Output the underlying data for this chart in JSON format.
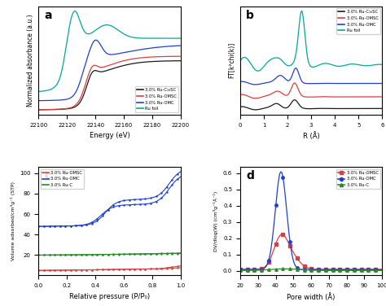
{
  "panel_a": {
    "title": "a",
    "xlabel": "Energy (eV)",
    "ylabel": "Normalized absorbance (a.u.)",
    "xlim": [
      22100,
      22200
    ],
    "xticks": [
      22100,
      22120,
      22140,
      22160,
      22180,
      22200
    ],
    "legend": [
      "3.0% Ru-C₁₆SC",
      "3.0% Ru-OMSC",
      "3.0% Ru-OMC",
      "Ru foil"
    ],
    "colors": [
      "#1a1a1a",
      "#d94040",
      "#2040cc",
      "#00a898"
    ]
  },
  "panel_b": {
    "title": "b",
    "xlabel": "R (Å)",
    "ylabel": "FT[k²chi(k)]",
    "xlim": [
      0,
      6
    ],
    "legend": [
      "3.0% Ru-C₁₆SC",
      "3.0% Ru-OMSC",
      "3.0% Ru-OMC",
      "Ru foil"
    ],
    "colors": [
      "#1a1a1a",
      "#d94040",
      "#2040cc",
      "#00a898"
    ]
  },
  "panel_c": {
    "title": "c",
    "xlabel": "Relative pressure (P/P₀)",
    "ylabel": "Volume adsorbed/cm³g⁻¹ (STP)",
    "xlim": [
      0.0,
      1.0
    ],
    "legend": [
      "3.0% Ru-OMSC",
      "3.0% Ru-OMC",
      "3.0% Ru-C"
    ],
    "colors": [
      "#d94040",
      "#2040cc",
      "#2a8a2a"
    ]
  },
  "panel_d": {
    "title": "d",
    "xlabel": "Pore width (Å)",
    "ylabel": "DV/dlog(W) (cm³g⁻¹Å⁻¹)",
    "xlim": [
      20,
      100
    ],
    "legend": [
      "3.0% Ru-OMSC",
      "3.0% Ru-OMC",
      "3.0% Ru-C"
    ],
    "colors": [
      "#d94040",
      "#2040cc",
      "#2a8a2a"
    ]
  },
  "bg_color": "#ffffff"
}
